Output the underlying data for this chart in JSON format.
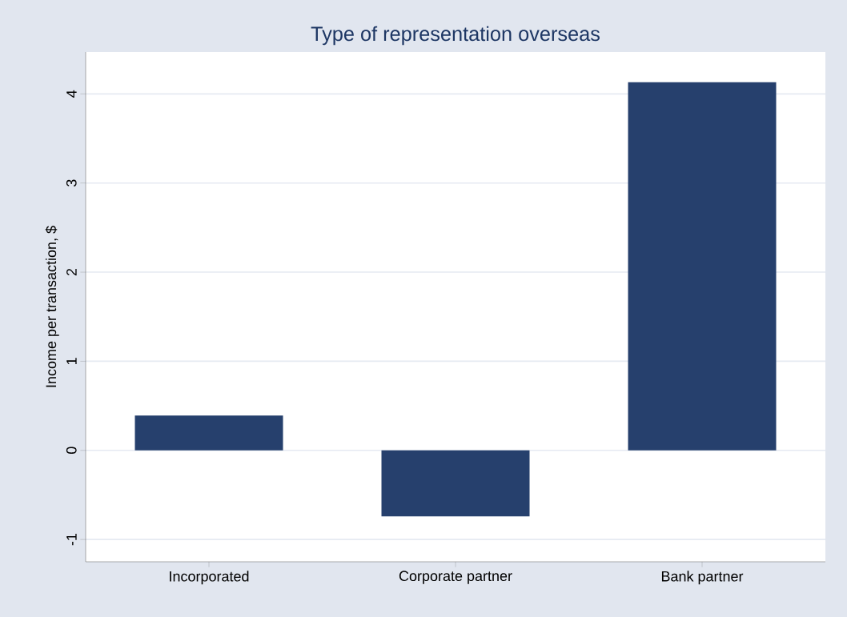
{
  "chart_data": {
    "type": "bar",
    "title": "Type of representation overseas",
    "ylabel": "Income per transaction, $",
    "categories": [
      "Incorporated",
      "Corporate partner",
      "Bank partner"
    ],
    "values": [
      0.39,
      -0.74,
      4.13
    ],
    "color": "#26406d",
    "ylim": [
      -1.25,
      4.47
    ],
    "yticks": [
      -1,
      0,
      1,
      2,
      3,
      4
    ],
    "grid": "y"
  }
}
